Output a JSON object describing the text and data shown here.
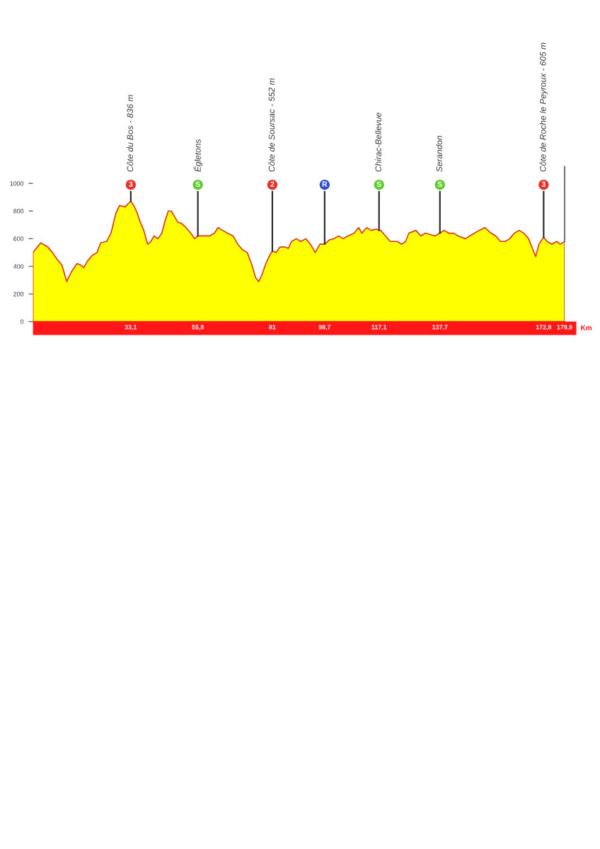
{
  "chart_data": {
    "type": "area",
    "xlabel": "Km",
    "color": "#ffff00",
    "x": [
      0,
      2.6,
      5.0,
      6.6,
      8.2,
      9.8,
      11.4,
      13.0,
      14.9,
      16.1,
      17.2,
      18.5,
      20.1,
      21.7,
      22.9,
      24.9,
      26.4,
      28.0,
      29.3,
      31.2,
      32.5,
      33.1,
      34.1,
      35.2,
      36.3,
      37.5,
      38.8,
      39.9,
      41.0,
      42.3,
      43.6,
      44.7,
      45.8,
      46.8,
      47.9,
      49.0,
      50.3,
      51.8,
      53.4,
      54.7,
      55.8,
      56.6,
      58.2,
      59.8,
      61.4,
      62.6,
      64.2,
      65.8,
      67.7,
      69.3,
      70.9,
      72.5,
      74.1,
      75.3,
      76.4,
      77.5,
      78.8,
      80.1,
      81.0,
      82.3,
      83.6,
      85.2,
      86.4,
      87.5,
      89.1,
      90.7,
      92.3,
      93.9,
      95.5,
      97.1,
      98.7,
      100.2,
      101.8,
      103.4,
      105.0,
      106.6,
      108.7,
      110.2,
      111.3,
      112.9,
      114.5,
      116.1,
      117.1,
      117.7,
      119.3,
      120.9,
      123.3,
      124.8,
      126.1,
      127.2,
      129.6,
      131.2,
      132.8,
      134.4,
      136.0,
      137.7,
      139.1,
      140.7,
      142.3,
      143.9,
      146.3,
      148.6,
      151.0,
      152.9,
      155.0,
      156.6,
      158.2,
      159.8,
      161.3,
      162.9,
      164.5,
      166.1,
      167.7,
      169.0,
      170.1,
      171.2,
      172.8,
      174.0,
      175.6,
      177.2,
      178.5,
      179.9
    ],
    "values": [
      500,
      570,
      540,
      500,
      450,
      410,
      290,
      360,
      420,
      410,
      390,
      440,
      480,
      500,
      570,
      580,
      640,
      780,
      840,
      830,
      860,
      870,
      840,
      790,
      720,
      660,
      560,
      580,
      620,
      600,
      640,
      730,
      800,
      800,
      760,
      720,
      710,
      680,
      640,
      600,
      620,
      620,
      620,
      620,
      640,
      680,
      660,
      640,
      620,
      560,
      520,
      500,
      410,
      320,
      290,
      340,
      420,
      480,
      510,
      500,
      540,
      540,
      530,
      580,
      600,
      580,
      600,
      560,
      500,
      560,
      560,
      590,
      600,
      620,
      600,
      620,
      640,
      680,
      640,
      680,
      660,
      670,
      660,
      660,
      620,
      580,
      580,
      560,
      580,
      640,
      660,
      620,
      640,
      630,
      620,
      640,
      660,
      640,
      640,
      620,
      600,
      630,
      660,
      680,
      640,
      620,
      580,
      580,
      600,
      640,
      660,
      640,
      600,
      530,
      470,
      560,
      610,
      580,
      560,
      580,
      560,
      580
    ],
    "xlim": [
      0,
      179.9
    ],
    "xticks": [
      {
        "value": 33.1,
        "label": "33,1"
      },
      {
        "value": 55.8,
        "label": "55,8"
      },
      81,
      {
        "value": 98.7,
        "label": "98,7"
      },
      {
        "value": 117.1,
        "label": "117,1"
      },
      {
        "value": 137.7,
        "label": "137,7"
      },
      {
        "value": 172.8,
        "label": "172,8"
      },
      {
        "value": 179.9,
        "label": "179,9"
      }
    ],
    "ylim": [
      0,
      1000
    ],
    "yticks": [
      0,
      200,
      400,
      600,
      800,
      1000
    ],
    "ref_lines": [
      {
        "axis": "x",
        "value": 179.9
      }
    ],
    "annotations": [
      {
        "text": "3",
        "x": 33.1,
        "y": 870
      },
      "Côte du Bos - 836 m",
      {
        "text": "S",
        "x": 55.8,
        "y": 620
      },
      "Égletons",
      {
        "text": "2",
        "x": 81,
        "y": 510
      },
      "Côte de Soursac - 552 m",
      {
        "text": "R",
        "x": 98.7,
        "y": 560
      },
      {
        "text": "S",
        "x": 117.1,
        "y": 660
      },
      "Chirac-Bellevue",
      {
        "text": "S",
        "x": 137.7,
        "y": 640
      },
      "Serandon",
      {
        "text": "3",
        "x": 172.8,
        "y": 610
      },
      "Côte de Roche le Peyroux - 605 m"
    ]
  }
}
